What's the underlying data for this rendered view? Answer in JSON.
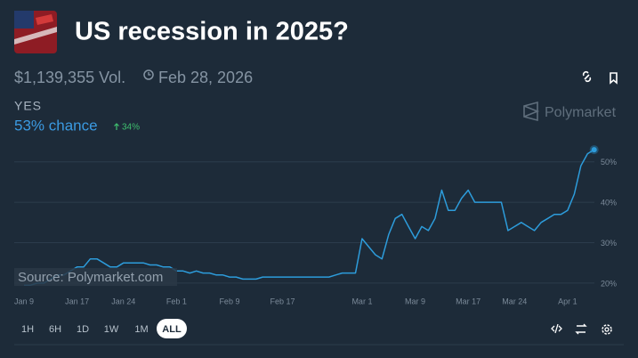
{
  "header": {
    "title": "US recession in 2025?",
    "volume": "$1,139,355 Vol.",
    "end_date": "Feb 28, 2026"
  },
  "outcome": {
    "name": "YES",
    "chance": "53% chance",
    "change": "34%"
  },
  "brand": "Polymarket",
  "source": "Source: Polymarket.com",
  "ranges": [
    "1H",
    "6H",
    "1D",
    "1W",
    "1M",
    "ALL"
  ],
  "chart_data": {
    "type": "line",
    "x": [
      "Jan 9",
      "Jan 10",
      "Jan 11",
      "Jan 12",
      "Jan 13",
      "Jan 14",
      "Jan 15",
      "Jan 16",
      "Jan 17",
      "Jan 18",
      "Jan 19",
      "Jan 20",
      "Jan 21",
      "Jan 22",
      "Jan 23",
      "Jan 24",
      "Jan 25",
      "Jan 26",
      "Jan 27",
      "Jan 28",
      "Jan 29",
      "Jan 30",
      "Jan 31",
      "Feb 1",
      "Feb 2",
      "Feb 3",
      "Feb 4",
      "Feb 5",
      "Feb 6",
      "Feb 7",
      "Feb 8",
      "Feb 9",
      "Feb 10",
      "Feb 11",
      "Feb 12",
      "Feb 13",
      "Feb 14",
      "Feb 15",
      "Feb 16",
      "Feb 17",
      "Feb 18",
      "Feb 19",
      "Feb 20",
      "Feb 21",
      "Feb 22",
      "Feb 23",
      "Feb 24",
      "Feb 25",
      "Feb 26",
      "Feb 27",
      "Feb 28",
      "Mar 1",
      "Mar 2",
      "Mar 3",
      "Mar 4",
      "Mar 5",
      "Mar 6",
      "Mar 7",
      "Mar 8",
      "Mar 9",
      "Mar 10",
      "Mar 11",
      "Mar 12",
      "Mar 13",
      "Mar 14",
      "Mar 15",
      "Mar 16",
      "Mar 17",
      "Mar 18",
      "Mar 19",
      "Mar 20",
      "Mar 21",
      "Mar 22",
      "Mar 23",
      "Mar 24",
      "Mar 25",
      "Mar 26",
      "Mar 27",
      "Mar 28",
      "Mar 29",
      "Mar 30",
      "Mar 31",
      "Apr 1",
      "Apr 2",
      "Apr 3",
      "Apr 4",
      "Apr 5"
    ],
    "series": [
      {
        "name": "YES",
        "color": "#2d9cdb",
        "values": [
          19.5,
          19.5,
          20,
          20,
          21,
          22,
          22,
          23,
          24,
          24,
          26,
          26,
          25,
          24,
          24,
          25,
          25,
          25,
          25,
          24.5,
          24.5,
          24,
          24,
          23,
          23,
          22.5,
          23,
          22.5,
          22.5,
          22,
          22,
          21.5,
          21.5,
          21,
          21,
          21,
          21.5,
          21.5,
          21.5,
          21.5,
          21.5,
          21.5,
          21.5,
          21.5,
          21.5,
          21.5,
          21.5,
          22,
          22.5,
          22.5,
          22.5,
          31,
          29,
          27,
          26,
          32,
          36,
          37,
          34,
          31,
          34,
          33,
          36,
          43,
          38,
          38,
          41,
          43,
          40,
          40,
          40,
          40,
          40,
          33,
          34,
          35,
          34,
          33,
          35,
          36,
          37,
          37,
          38,
          42,
          49,
          52,
          53
        ]
      }
    ],
    "xticks": [
      "Jan 9",
      "Jan 17",
      "Jan 24",
      "Feb 1",
      "Feb 9",
      "Feb 17",
      "Mar 1",
      "Mar 9",
      "Mar 17",
      "Mar 24",
      "Apr 1"
    ],
    "ylim": [
      18,
      55
    ],
    "yticks": [
      {
        "value": 20,
        "label": "20%"
      },
      {
        "value": 30,
        "label": "30%"
      },
      {
        "value": 40,
        "label": "40%"
      },
      {
        "value": 50,
        "label": "50%"
      }
    ],
    "grid": true
  }
}
